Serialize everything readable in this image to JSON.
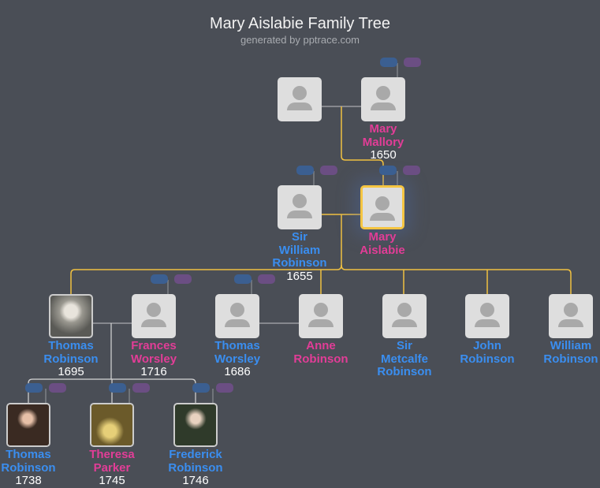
{
  "header": {
    "title": "Mary Aislabie Family Tree",
    "subtitle": "generated by pptrace.com"
  },
  "colors": {
    "male": "#3a8ef0",
    "female": "#e23d97",
    "line": "#f0c040",
    "spouse_line": "#9a9ca0",
    "selected": "#f5c542"
  },
  "people": [
    {
      "id": "p0",
      "name": [],
      "gender": "m",
      "year": "",
      "photo": "silhouette-icon"
    },
    {
      "id": "p1",
      "name": [
        "Mary",
        "Mallory"
      ],
      "gender": "f",
      "year": "1650",
      "photo": "silhouette-icon"
    },
    {
      "id": "p2",
      "name": [
        "Sir",
        "William",
        "Robinson"
      ],
      "gender": "m",
      "year": "1655",
      "photo": "silhouette-icon"
    },
    {
      "id": "p3",
      "name": [
        "Mary",
        "Aislabie"
      ],
      "gender": "f",
      "year": "",
      "photo": "silhouette-icon",
      "selected": true
    },
    {
      "id": "p4",
      "name": [
        "Thomas",
        "Robinson"
      ],
      "gender": "m",
      "year": "1695",
      "photo": "portrait"
    },
    {
      "id": "p5",
      "name": [
        "Frances",
        "Worsley"
      ],
      "gender": "f",
      "year": "1716",
      "photo": "silhouette-icon"
    },
    {
      "id": "p6",
      "name": [
        "Thomas",
        "Worsley"
      ],
      "gender": "m",
      "year": "1686",
      "photo": "silhouette-icon"
    },
    {
      "id": "p7",
      "name": [
        "Anne",
        "Robinson"
      ],
      "gender": "f",
      "year": "",
      "photo": "silhouette-icon"
    },
    {
      "id": "p8",
      "name": [
        "Sir",
        "Metcalfe",
        "Robinson"
      ],
      "gender": "m",
      "year": "",
      "photo": "silhouette-icon"
    },
    {
      "id": "p9",
      "name": [
        "John",
        "Robinson"
      ],
      "gender": "m",
      "year": "",
      "photo": "silhouette-icon"
    },
    {
      "id": "p10",
      "name": [
        "William",
        "Robinson"
      ],
      "gender": "m",
      "year": "",
      "photo": "silhouette-icon"
    },
    {
      "id": "p11",
      "name": [
        "Thomas",
        "Robinson"
      ],
      "gender": "m",
      "year": "1738",
      "photo": "portrait"
    },
    {
      "id": "p12",
      "name": [
        "Theresa",
        "Parker"
      ],
      "gender": "f",
      "year": "1745",
      "photo": "portrait"
    },
    {
      "id": "p13",
      "name": [
        "Frederick",
        "Robinson"
      ],
      "gender": "m",
      "year": "1746",
      "photo": "portrait"
    }
  ]
}
